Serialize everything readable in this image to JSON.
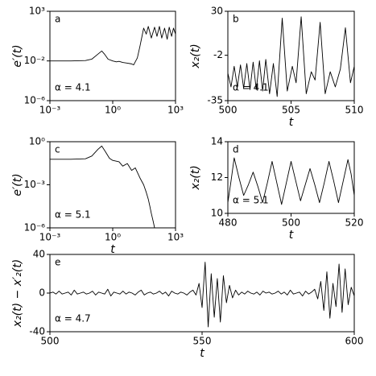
{
  "chart_data": [
    {
      "type": "line",
      "label": "a",
      "annotation": "α = 4.1",
      "x_label": "",
      "y_label": "e′(t)",
      "x_scale": "log",
      "y_scale": "log",
      "color": "#000000",
      "xlim": [
        0.001,
        1000
      ],
      "ylim": [
        1e-06,
        1000
      ],
      "xticks": [
        {
          "value": 0.001,
          "label": "10⁻³"
        },
        {
          "value": 1,
          "label": "10⁰"
        },
        {
          "value": 1000,
          "label": "10³"
        }
      ],
      "yticks": [
        {
          "value": 1e-06,
          "label": "10⁻⁶"
        },
        {
          "value": 0.01,
          "label": "10⁻²"
        },
        {
          "value": 1000,
          "label": "10³"
        }
      ],
      "x": [
        0.001,
        0.01,
        0.05,
        0.1,
        0.2,
        0.3,
        0.4,
        0.6,
        1,
        1.5,
        2,
        3,
        5,
        8,
        10,
        15,
        20,
        25,
        30,
        40,
        50,
        70,
        100,
        130,
        170,
        220,
        300,
        400,
        500,
        650,
        800,
        1000
      ],
      "values": [
        0.01,
        0.01,
        0.011,
        0.015,
        0.05,
        0.1,
        0.05,
        0.015,
        0.01,
        0.008,
        0.009,
        0.007,
        0.006,
        0.005,
        0.004,
        0.02,
        0.3,
        3,
        20,
        5,
        30,
        2,
        25,
        3,
        30,
        2,
        20,
        1.5,
        25,
        3,
        20,
        5
      ]
    },
    {
      "type": "line",
      "label": "b",
      "annotation": "α = 4.1",
      "x_label": "t",
      "y_label": "x₂(t)",
      "x_scale": "linear",
      "y_scale": "linear",
      "color": "#000000",
      "xlim": [
        500,
        510
      ],
      "ylim": [
        -35,
        30
      ],
      "xticks": [
        500,
        505,
        510
      ],
      "yticks": [
        -35,
        -2,
        30
      ],
      "x": [
        500,
        500.25,
        500.5,
        500.75,
        501,
        501.25,
        501.5,
        501.75,
        502,
        502.25,
        502.5,
        502.75,
        503,
        503.3,
        503.6,
        503.9,
        504.3,
        504.7,
        505.1,
        505.4,
        505.8,
        506.2,
        506.6,
        506.9,
        507.3,
        507.7,
        508.1,
        508.5,
        508.9,
        509.3,
        509.7,
        510
      ],
      "values": [
        -15,
        -25,
        -10,
        -25,
        -9,
        -26,
        -8,
        -27,
        -7,
        -27,
        -6,
        -28,
        -5,
        -30,
        -8,
        -32,
        25,
        -28,
        -10,
        -22,
        26,
        -30,
        -14,
        -20,
        22,
        -30,
        -14,
        -25,
        -12,
        18,
        -22,
        -10
      ]
    },
    {
      "type": "line",
      "label": "c",
      "annotation": "α = 5.1",
      "x_label": "t",
      "y_label": "e′(t)",
      "x_scale": "log",
      "y_scale": "log",
      "color": "#000000",
      "xlim": [
        0.001,
        1000
      ],
      "ylim": [
        1e-06,
        1
      ],
      "xticks": [
        {
          "value": 0.001,
          "label": "10⁻³"
        },
        {
          "value": 1,
          "label": "10⁰"
        },
        {
          "value": 1000,
          "label": "10³"
        }
      ],
      "yticks": [
        {
          "value": 1e-06,
          "label": "10⁻⁶"
        },
        {
          "value": 0.001,
          "label": "10⁻³"
        },
        {
          "value": 1,
          "label": "10⁰"
        }
      ],
      "x": [
        0.001,
        0.01,
        0.05,
        0.1,
        0.2,
        0.3,
        0.45,
        0.7,
        1,
        2,
        3,
        5,
        8,
        12,
        20,
        30,
        40,
        50,
        60,
        70,
        85,
        100
      ],
      "values": [
        0.06,
        0.06,
        0.065,
        0.1,
        0.3,
        0.5,
        0.2,
        0.07,
        0.05,
        0.04,
        0.02,
        0.03,
        0.01,
        0.015,
        0.003,
        0.001,
        0.0003,
        0.0001,
        3e-05,
        1e-05,
        3e-06,
        1e-06
      ]
    },
    {
      "type": "line",
      "label": "d",
      "annotation": "α = 5.1",
      "x_label": "t",
      "y_label": "x₂(t)",
      "x_scale": "linear",
      "y_scale": "linear",
      "color": "#000000",
      "xlim": [
        480,
        520
      ],
      "ylim": [
        10,
        14
      ],
      "xticks": [
        480,
        500,
        520
      ],
      "yticks": [
        10,
        12,
        14
      ],
      "x": [
        480,
        481,
        482,
        483.5,
        485,
        486.5,
        488,
        489.5,
        491,
        492.5,
        494,
        495.5,
        497,
        498.5,
        500,
        501.5,
        503,
        504.5,
        506,
        507.5,
        509,
        510.5,
        512,
        513.5,
        515,
        516.5,
        518,
        519,
        520
      ],
      "values": [
        10.6,
        11.8,
        13.1,
        12.0,
        11.0,
        11.6,
        12.3,
        11.5,
        10.6,
        11.7,
        12.9,
        11.7,
        10.5,
        11.7,
        12.9,
        11.8,
        10.7,
        11.6,
        12.5,
        11.6,
        10.6,
        11.7,
        12.9,
        11.8,
        10.6,
        11.8,
        13.0,
        12.2,
        11.0
      ]
    },
    {
      "type": "line",
      "label": "e",
      "annotation": "α = 4.7",
      "x_label": "t",
      "y_label": "x₂(t) − x′₂(t)",
      "x_scale": "linear",
      "y_scale": "linear",
      "color": "#000000",
      "xlim": [
        500,
        600
      ],
      "ylim": [
        -40,
        40
      ],
      "xticks": [
        500,
        550,
        600
      ],
      "yticks": [
        -40,
        0,
        40
      ],
      "x": [
        500,
        501,
        502,
        503,
        504,
        505,
        506,
        507,
        508,
        509,
        510,
        511,
        512,
        513,
        514,
        515,
        516,
        517,
        518,
        519,
        520,
        521,
        522,
        523,
        524,
        525,
        526,
        527,
        528,
        529,
        530,
        531,
        532,
        533,
        534,
        535,
        536,
        537,
        538,
        539,
        540,
        541,
        542,
        543,
        544,
        545,
        546,
        547,
        548,
        549,
        550,
        551,
        552,
        553,
        554,
        555,
        556,
        557,
        558,
        559,
        560,
        561,
        562,
        563,
        564,
        565,
        566,
        567,
        568,
        569,
        570,
        571,
        572,
        573,
        574,
        575,
        576,
        577,
        578,
        579,
        580,
        581,
        582,
        583,
        584,
        585,
        586,
        587,
        588,
        589,
        590,
        591,
        592,
        593,
        594,
        595,
        596,
        597,
        598,
        599,
        600
      ],
      "values": [
        0,
        1,
        -1,
        2,
        -1,
        0,
        1,
        -2,
        3,
        -1,
        0,
        1,
        -1,
        0,
        2,
        -2,
        1,
        0,
        -1,
        4,
        -3,
        1,
        0,
        -1,
        2,
        -1,
        1,
        0,
        -2,
        1,
        3,
        -2,
        0,
        1,
        -1,
        0,
        2,
        -1,
        1,
        -3,
        2,
        0,
        -1,
        1,
        0,
        -2,
        1,
        3,
        -2,
        10,
        -15,
        32,
        -35,
        20,
        -25,
        15,
        -30,
        18,
        -10,
        8,
        -5,
        3,
        -2,
        1,
        -1,
        2,
        0,
        -1,
        1,
        -2,
        2,
        0,
        1,
        -1,
        0,
        2,
        -1,
        1,
        -2,
        3,
        -1,
        0,
        1,
        -3,
        2,
        -1,
        1,
        4,
        -6,
        12,
        -18,
        22,
        -26,
        10,
        -14,
        30,
        -20,
        25,
        -12,
        6,
        -3
      ]
    }
  ]
}
